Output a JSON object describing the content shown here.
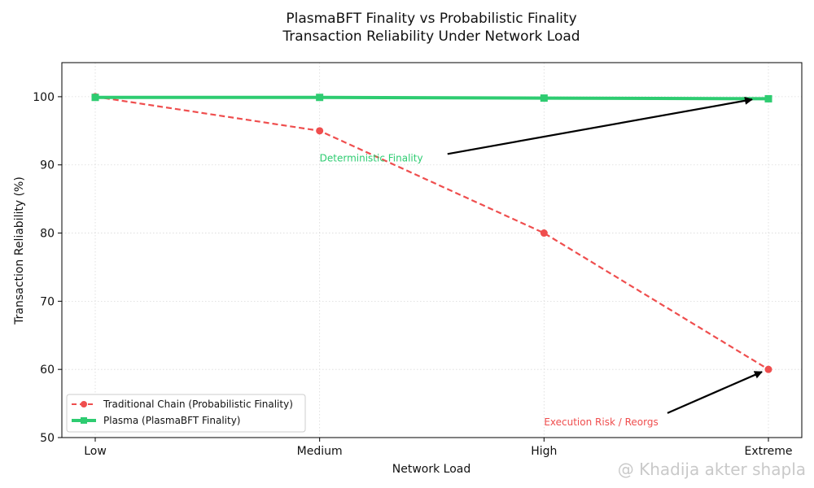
{
  "chart_data": {
    "type": "line",
    "title": [
      "PlasmaBFT Finality vs Probabilistic Finality",
      "Transaction Reliability Under Network Load"
    ],
    "xlabel": "Network Load",
    "ylabel": "Transaction Reliability (%)",
    "categories": [
      "Low",
      "Medium",
      "High",
      "Extreme"
    ],
    "ylim": [
      50,
      105
    ],
    "yticks": [
      50,
      60,
      70,
      80,
      90,
      100
    ],
    "grid": true,
    "series": [
      {
        "name": "Traditional Chain (Probabilistic Finality)",
        "values": [
          100,
          95,
          80,
          60
        ],
        "color": "#ef4e4e",
        "marker": "circle",
        "linestyle": "dashed"
      },
      {
        "name": "Plasma (PlasmaBFT Finality)",
        "values": [
          99.9,
          99.9,
          99.8,
          99.7
        ],
        "color": "#2ecc71",
        "marker": "square",
        "linestyle": "solid"
      }
    ],
    "annotations": [
      {
        "text": "Deterministic Finality",
        "color": "#2ecc71",
        "text_at": [
          1.0,
          90.5
        ],
        "arrow_from": [
          1.57,
          91.6
        ],
        "arrow_to": [
          3.0,
          99.5
        ]
      },
      {
        "text": "Execution Risk / Reorgs",
        "color": "#ef4e4e",
        "text_at": [
          2.0,
          51.8
        ],
        "arrow_from": [
          2.55,
          53.6
        ],
        "arrow_to": [
          3.0,
          60
        ]
      }
    ],
    "legend_position": "lower-left"
  },
  "watermark": "@ Khadija akter shapla"
}
